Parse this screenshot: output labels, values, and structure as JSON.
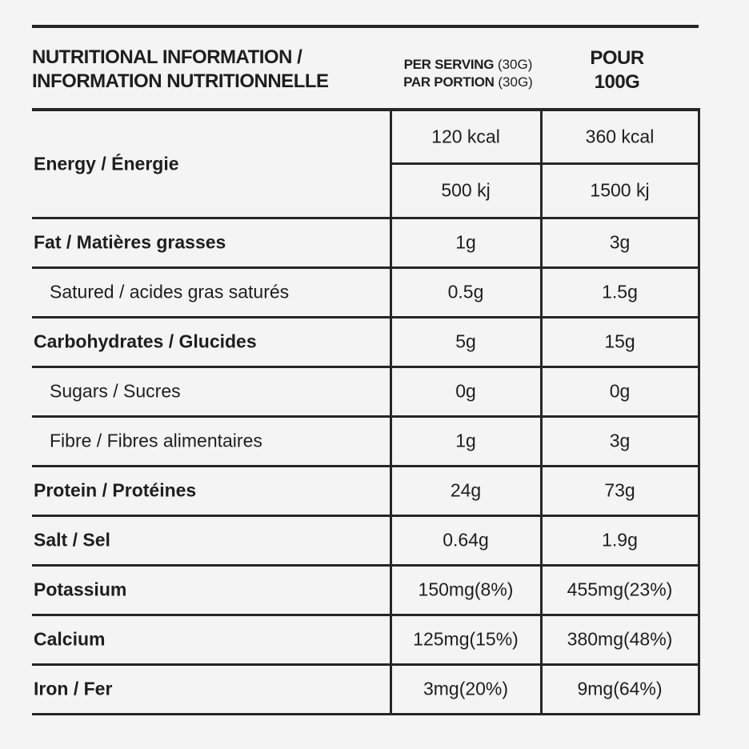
{
  "header": {
    "title": [
      "NUTRITIONAL INFORMATION /",
      "INFORMATION NUTRITIONNELLE"
    ],
    "per_serving": [
      {
        "label": "PER SERVING",
        "unit": "(30G)"
      },
      {
        "label": "PAR PORTION",
        "unit": "(30G)"
      }
    ],
    "per_100g": [
      "POUR",
      "100G"
    ]
  },
  "table": {
    "rows": [
      {
        "label": "Energy / Énergie",
        "style": "bold",
        "per_serving": [
          "120 kcal",
          "500 kj"
        ],
        "per_100g": [
          "360 kcal",
          "1500 kj"
        ]
      },
      {
        "label": "Fat / Matières grasses",
        "style": "bold",
        "per_serving": [
          "1g"
        ],
        "per_100g": [
          "3g"
        ]
      },
      {
        "label": "Satured / acides gras saturés",
        "style": "sub",
        "per_serving": [
          "0.5g"
        ],
        "per_100g": [
          "1.5g"
        ]
      },
      {
        "label": "Carbohydrates / Glucides",
        "style": "bold",
        "per_serving": [
          "5g"
        ],
        "per_100g": [
          "15g"
        ]
      },
      {
        "label": "Sugars / Sucres",
        "style": "sub",
        "per_serving": [
          "0g"
        ],
        "per_100g": [
          "0g"
        ]
      },
      {
        "label": "Fibre / Fibres alimentaires",
        "style": "sub",
        "per_serving": [
          "1g"
        ],
        "per_100g": [
          "3g"
        ]
      },
      {
        "label": "Protein / Protéines",
        "style": "bold",
        "per_serving": [
          "24g"
        ],
        "per_100g": [
          "73g"
        ]
      },
      {
        "label": "Salt / Sel",
        "style": "bold",
        "per_serving": [
          "0.64g"
        ],
        "per_100g": [
          "1.9g"
        ]
      },
      {
        "label": "Potassium",
        "style": "bold",
        "per_serving": [
          "150mg(8%)"
        ],
        "per_100g": [
          "455mg(23%)"
        ]
      },
      {
        "label": "Calcium",
        "style": "bold",
        "per_serving": [
          "125mg(15%)"
        ],
        "per_100g": [
          "380mg(48%)"
        ]
      },
      {
        "label": "Iron / Fer",
        "style": "bold",
        "per_serving": [
          "3mg(20%)"
        ],
        "per_100g": [
          "9mg(64%)"
        ]
      }
    ]
  }
}
